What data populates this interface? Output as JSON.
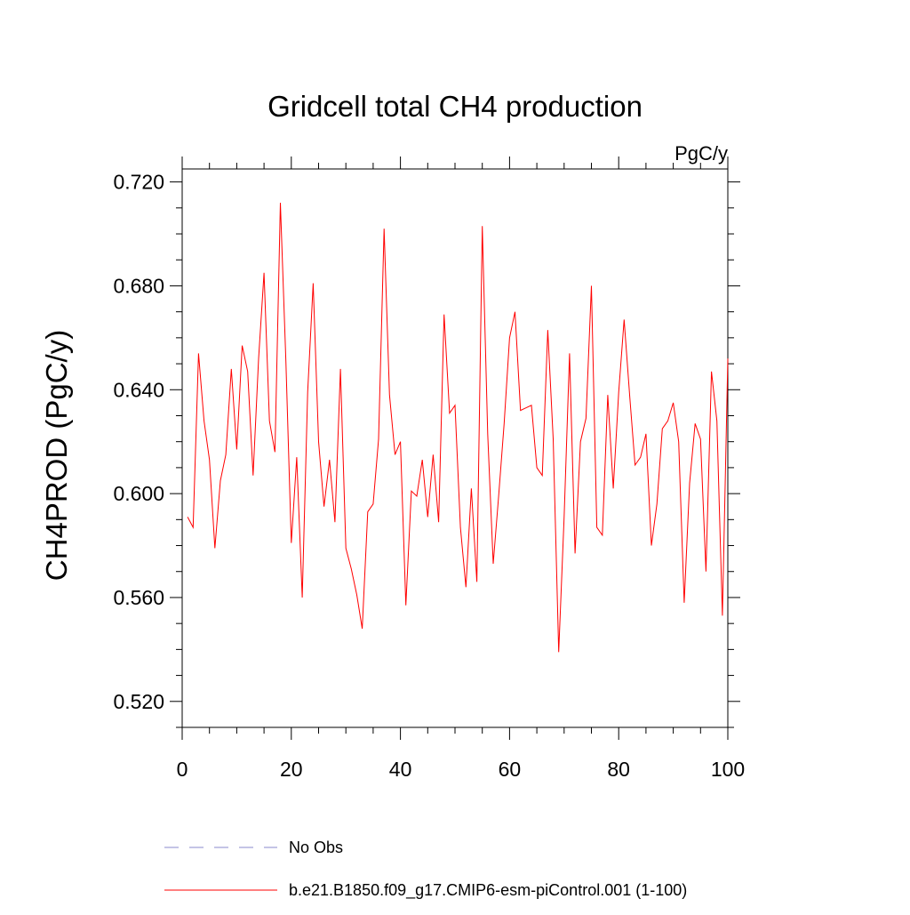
{
  "chart_data": {
    "type": "line",
    "title": "Gridcell total CH4 production",
    "units": "PgC/y",
    "ylabel": "CH4PROD  (PgC/y)",
    "xlabel": "",
    "xlim": [
      0,
      100
    ],
    "ylim": [
      0.51,
      0.725
    ],
    "x_ticks": [
      0,
      20,
      40,
      60,
      80,
      100
    ],
    "x_tick_labels": [
      "0",
      "20",
      "40",
      "60",
      "80",
      "100"
    ],
    "y_ticks": [
      0.52,
      0.56,
      0.6,
      0.64,
      0.68,
      0.72
    ],
    "y_tick_labels": [
      "0.520",
      "0.560",
      "0.600",
      "0.640",
      "0.680",
      "0.720"
    ],
    "grid": false,
    "legend_position": "bottom",
    "legend": [
      {
        "name": "No Obs",
        "style": "dashed",
        "color": "#8888cc"
      },
      {
        "name": "b.e21.B1850.f09_g17.CMIP6-esm-piControl.001 (1-100)",
        "style": "solid",
        "color": "#ff0000"
      }
    ],
    "series": [
      {
        "name": "b.e21.B1850.f09_g17.CMIP6-esm-piControl.001 (1-100)",
        "color": "#ff0000",
        "x": [
          1,
          2,
          3,
          4,
          5,
          6,
          7,
          8,
          9,
          10,
          11,
          12,
          13,
          14,
          15,
          16,
          17,
          18,
          19,
          20,
          21,
          22,
          23,
          24,
          25,
          26,
          27,
          28,
          29,
          30,
          31,
          32,
          33,
          34,
          35,
          36,
          37,
          38,
          39,
          40,
          41,
          42,
          43,
          44,
          45,
          46,
          47,
          48,
          49,
          50,
          51,
          52,
          53,
          54,
          55,
          56,
          57,
          58,
          59,
          60,
          61,
          62,
          63,
          64,
          65,
          66,
          67,
          68,
          69,
          70,
          71,
          72,
          73,
          74,
          75,
          76,
          77,
          78,
          79,
          80,
          81,
          82,
          83,
          84,
          85,
          86,
          87,
          88,
          89,
          90,
          91,
          92,
          93,
          94,
          95,
          96,
          97,
          98,
          99,
          100
        ],
        "values": [
          0.591,
          0.587,
          0.654,
          0.628,
          0.613,
          0.579,
          0.605,
          0.615,
          0.648,
          0.617,
          0.657,
          0.647,
          0.607,
          0.652,
          0.685,
          0.628,
          0.616,
          0.712,
          0.651,
          0.581,
          0.614,
          0.56,
          0.639,
          0.681,
          0.62,
          0.595,
          0.613,
          0.589,
          0.648,
          0.579,
          0.571,
          0.561,
          0.548,
          0.593,
          0.596,
          0.621,
          0.702,
          0.638,
          0.615,
          0.62,
          0.557,
          0.601,
          0.599,
          0.613,
          0.591,
          0.615,
          0.589,
          0.669,
          0.631,
          0.634,
          0.587,
          0.564,
          0.602,
          0.566,
          0.703,
          0.623,
          0.573,
          0.599,
          0.627,
          0.66,
          0.67,
          0.632,
          0.633,
          0.634,
          0.61,
          0.607,
          0.663,
          0.621,
          0.539,
          0.591,
          0.654,
          0.577,
          0.62,
          0.629,
          0.68,
          0.587,
          0.584,
          0.638,
          0.602,
          0.639,
          0.667,
          0.638,
          0.611,
          0.614,
          0.623,
          0.58,
          0.596,
          0.625,
          0.628,
          0.635,
          0.62,
          0.558,
          0.604,
          0.627,
          0.621,
          0.57,
          0.647,
          0.628,
          0.553,
          0.652
        ]
      }
    ]
  }
}
